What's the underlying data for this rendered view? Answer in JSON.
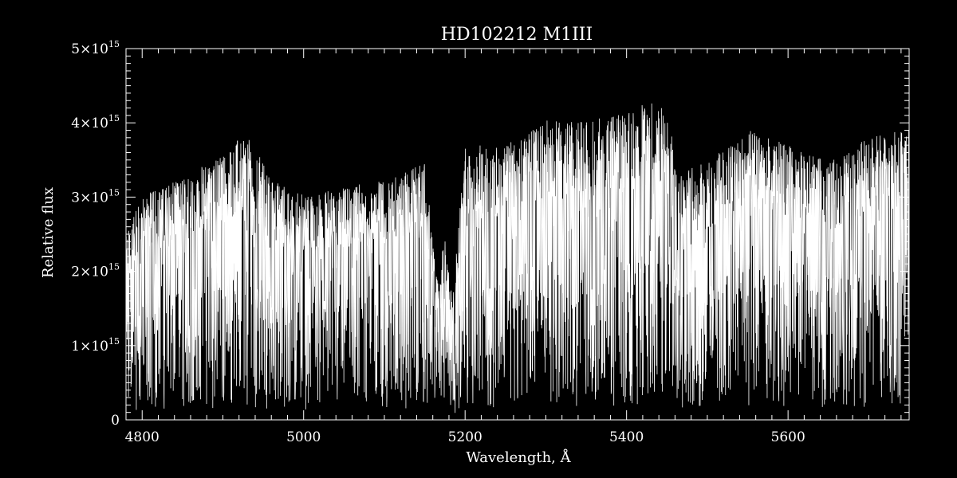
{
  "chart_data": {
    "type": "line",
    "title": "HD102212   M1III",
    "xlabel": "Wavelength, Å",
    "ylabel": "Relative flux",
    "xlim": [
      4780,
      5750
    ],
    "ylim": [
      0,
      5000000000000000.0
    ],
    "grid": false,
    "x_ticks": [
      4800,
      5000,
      5200,
      5400,
      5600
    ],
    "y_ticks": [
      {
        "value": 0,
        "mantissa": "0",
        "exponent": ""
      },
      {
        "value": 1000000000000000.0,
        "mantissa": "1×10",
        "exponent": "15"
      },
      {
        "value": 2000000000000000.0,
        "mantissa": "2×10",
        "exponent": "15"
      },
      {
        "value": 3000000000000000.0,
        "mantissa": "3×10",
        "exponent": "15"
      },
      {
        "value": 4000000000000000.0,
        "mantissa": "4×10",
        "exponent": "15"
      },
      {
        "value": 5000000000000000.0,
        "mantissa": "5×10",
        "exponent": "15"
      }
    ],
    "series": [
      {
        "line_color": "#ffffff",
        "x": [
          4780,
          4800,
          4850,
          4900,
          4930,
          4960,
          5000,
          5050,
          5100,
          5150,
          5165,
          5175,
          5185,
          5200,
          5250,
          5300,
          5350,
          5400,
          5440,
          5470,
          5500,
          5550,
          5600,
          5650,
          5700,
          5750
        ],
        "y": [
          2200000000000000.0,
          2700000000000000.0,
          2900000000000000.0,
          3200000000000000.0,
          3500000000000000.0,
          2900000000000000.0,
          2700000000000000.0,
          2800000000000000.0,
          2900000000000000.0,
          3100000000000000.0,
          1700000000000000.0,
          2200000000000000.0,
          1500000000000000.0,
          3300000000000000.0,
          3300000000000000.0,
          3600000000000000.0,
          3600000000000000.0,
          3700000000000000.0,
          3900000000000000.0,
          3000000000000000.0,
          3100000000000000.0,
          3500000000000000.0,
          3300000000000000.0,
          3100000000000000.0,
          3400000000000000.0,
          3500000000000000.0
        ]
      }
    ]
  }
}
